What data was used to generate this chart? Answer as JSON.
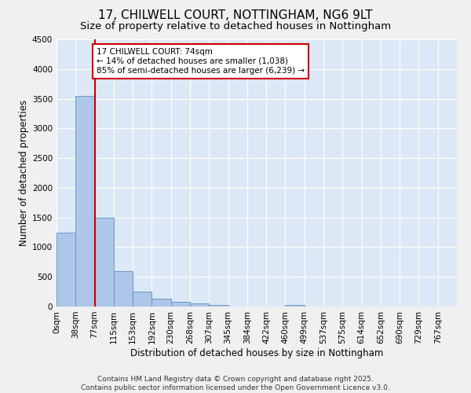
{
  "title_line1": "17, CHILWELL COURT, NOTTINGHAM, NG6 9LT",
  "title_line2": "Size of property relative to detached houses in Nottingham",
  "xlabel": "Distribution of detached houses by size in Nottingham",
  "ylabel": "Number of detached properties",
  "bar_labels": [
    "0sqm",
    "38sqm",
    "77sqm",
    "115sqm",
    "153sqm",
    "192sqm",
    "230sqm",
    "268sqm",
    "307sqm",
    "345sqm",
    "384sqm",
    "422sqm",
    "460sqm",
    "499sqm",
    "537sqm",
    "575sqm",
    "614sqm",
    "652sqm",
    "690sqm",
    "729sqm",
    "767sqm"
  ],
  "bar_values": [
    1250,
    3550,
    1500,
    600,
    250,
    130,
    75,
    50,
    20,
    5,
    5,
    0,
    30,
    5,
    0,
    0,
    0,
    0,
    0,
    0,
    0
  ],
  "bar_color": "#aec6e8",
  "bar_edge_color": "#5a8fc2",
  "bg_color": "#dce8f5",
  "grid_color": "#ffffff",
  "vline_color": "#cc0000",
  "annotation_text": "17 CHILWELL COURT: 74sqm\n← 14% of detached houses are smaller (1,038)\n85% of semi-detached houses are larger (6,239) →",
  "annotation_box_color": "#cc0000",
  "ylim": [
    0,
    4500
  ],
  "yticks": [
    0,
    500,
    1000,
    1500,
    2000,
    2500,
    3000,
    3500,
    4000,
    4500
  ],
  "footnote": "Contains HM Land Registry data © Crown copyright and database right 2025.\nContains public sector information licensed under the Open Government Licence v3.0.",
  "title_fontsize": 11,
  "subtitle_fontsize": 9.5,
  "axis_label_fontsize": 8.5,
  "tick_fontsize": 7.5,
  "annotation_fontsize": 7.5,
  "footnote_fontsize": 6.5
}
